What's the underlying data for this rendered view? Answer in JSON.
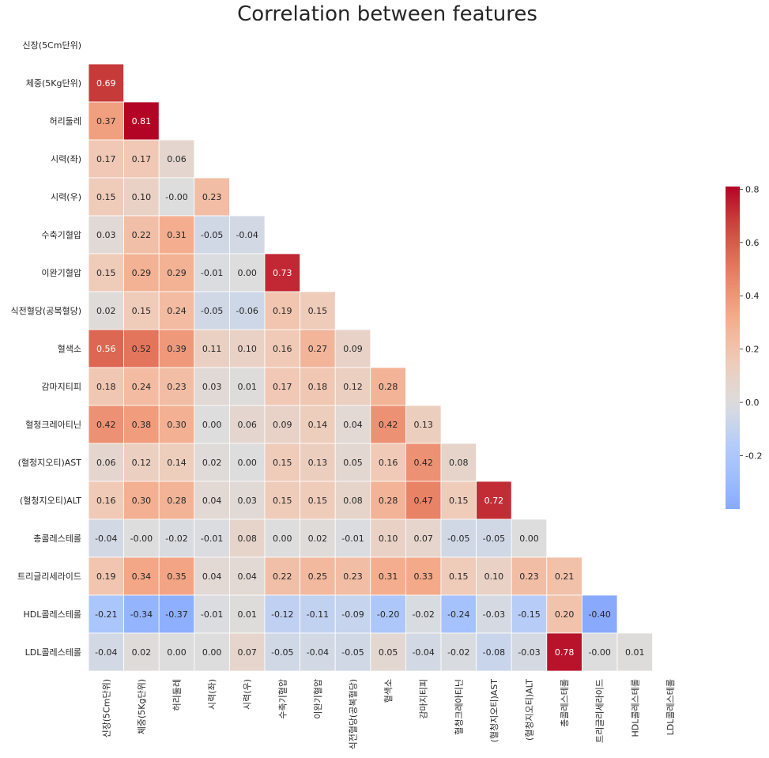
{
  "chart_data": {
    "type": "heatmap",
    "title": "Correlation between features",
    "labels": [
      "신장(5Cm단위)",
      "체중(5Kg단위)",
      "허리둘레",
      "시력(좌)",
      "시력(우)",
      "수축기혈압",
      "이완기혈압",
      "식전혈당(공복혈당)",
      "혈색소",
      "감마지티피",
      "혈청크레아티닌",
      "(혈청지오티)AST",
      "(혈청지오티)ALT",
      "총콜레스테롤",
      "트리글리세라이드",
      "HDL콜레스테롤",
      "LDL콜레스테롤"
    ],
    "mask": "upper triangle including diagonal",
    "values": [
      [],
      [
        0.69
      ],
      [
        0.37,
        0.81
      ],
      [
        0.17,
        0.17,
        0.06
      ],
      [
        0.15,
        0.1,
        -0.0,
        0.23
      ],
      [
        0.03,
        0.22,
        0.31,
        -0.05,
        -0.04
      ],
      [
        0.15,
        0.29,
        0.29,
        -0.01,
        0.0,
        0.73
      ],
      [
        0.02,
        0.15,
        0.24,
        -0.05,
        -0.06,
        0.19,
        0.15
      ],
      [
        0.56,
        0.52,
        0.39,
        0.11,
        0.1,
        0.16,
        0.27,
        0.09
      ],
      [
        0.18,
        0.24,
        0.23,
        0.03,
        0.01,
        0.17,
        0.18,
        0.12,
        0.28
      ],
      [
        0.42,
        0.38,
        0.3,
        0.0,
        0.06,
        0.09,
        0.14,
        0.04,
        0.42,
        0.13
      ],
      [
        0.06,
        0.12,
        0.14,
        0.02,
        0.0,
        0.15,
        0.13,
        0.05,
        0.16,
        0.42,
        0.08
      ],
      [
        0.16,
        0.3,
        0.28,
        0.04,
        0.03,
        0.15,
        0.15,
        0.08,
        0.28,
        0.47,
        0.15,
        0.72
      ],
      [
        -0.04,
        -0.0,
        -0.02,
        -0.01,
        0.08,
        0.0,
        0.02,
        -0.01,
        0.1,
        0.07,
        -0.05,
        -0.05,
        0.0
      ],
      [
        0.19,
        0.34,
        0.35,
        0.04,
        0.04,
        0.22,
        0.25,
        0.23,
        0.31,
        0.33,
        0.15,
        0.1,
        0.23,
        0.21
      ],
      [
        -0.21,
        -0.34,
        -0.37,
        -0.01,
        0.01,
        -0.12,
        -0.11,
        -0.09,
        -0.2,
        -0.02,
        -0.24,
        -0.03,
        -0.15,
        0.2,
        -0.4
      ],
      [
        -0.04,
        0.02,
        0.0,
        0.0,
        0.07,
        -0.05,
        -0.04,
        -0.05,
        0.05,
        -0.04,
        -0.02,
        -0.08,
        -0.03,
        0.78,
        -0.0,
        0.01
      ]
    ],
    "colormap": "coolwarm",
    "vmin": -0.4,
    "vmax": 0.81,
    "colorbar_ticks": [
      "0.8",
      "0.6",
      "0.4",
      "0.2",
      "0.0",
      "-0.2"
    ],
    "colorbar_tick_values": [
      0.8,
      0.6,
      0.4,
      0.2,
      0.0,
      -0.2
    ],
    "cell_border_color": "#ffffff"
  }
}
